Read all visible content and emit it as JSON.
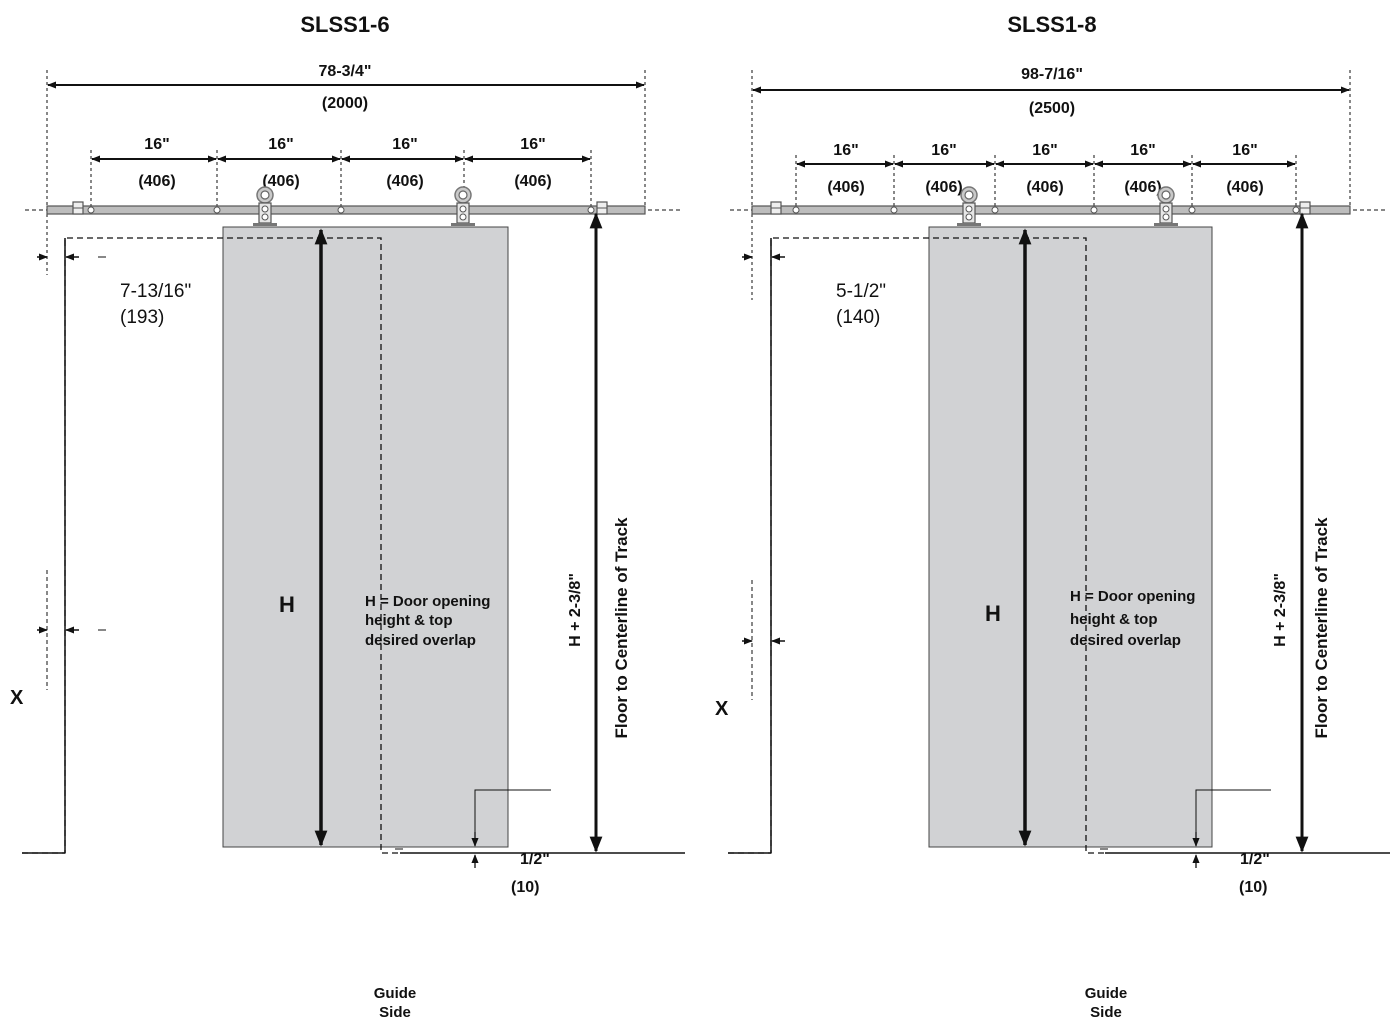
{
  "left": {
    "title": "SLSS1-6",
    "overall_in": "78-3/4\"",
    "overall_mm": "(2000)",
    "spacing": [
      {
        "in": "16\"",
        "mm": "(406)"
      },
      {
        "in": "16\"",
        "mm": "(406)"
      },
      {
        "in": "16\"",
        "mm": "(406)"
      },
      {
        "in": "16\"",
        "mm": "(406)"
      }
    ],
    "offset_in": "7-13/16\"",
    "offset_mm": "(193)",
    "h_label": "H",
    "h_note": [
      "H = Door opening",
      "height & top",
      "desired overlap"
    ],
    "vertical_dim": "H + 2-3/8\"",
    "floor_label": "Floor to Centerline of Track",
    "x_label": "X",
    "gap_in": "1/2\"",
    "gap_mm": "(10)",
    "guide": [
      "Guide",
      "Side"
    ]
  },
  "right": {
    "title": "SLSS1-8",
    "overall_in": "98-7/16\"",
    "overall_mm": "(2500)",
    "spacing": [
      {
        "in": "16\"",
        "mm": "(406)"
      },
      {
        "in": "16\"",
        "mm": "(406)"
      },
      {
        "in": "16\"",
        "mm": "(406)"
      },
      {
        "in": "16\"",
        "mm": "(406)"
      },
      {
        "in": "16\"",
        "mm": "(406)"
      }
    ],
    "offset_in": "5-1/2\"",
    "offset_mm": "(140)",
    "h_label": "H",
    "h_note": [
      "H = Door opening",
      "height & top",
      "desired overlap"
    ],
    "vertical_dim": "H + 2-3/8\"",
    "floor_label": "Floor to Centerline of Track",
    "x_label": "X",
    "gap_in": "1/2\"",
    "gap_mm": "(10)",
    "guide": [
      "Guide",
      "Side"
    ]
  },
  "colors": {
    "door": "#d1d2d4",
    "line": "#111111",
    "track": "#8a8a8a"
  }
}
